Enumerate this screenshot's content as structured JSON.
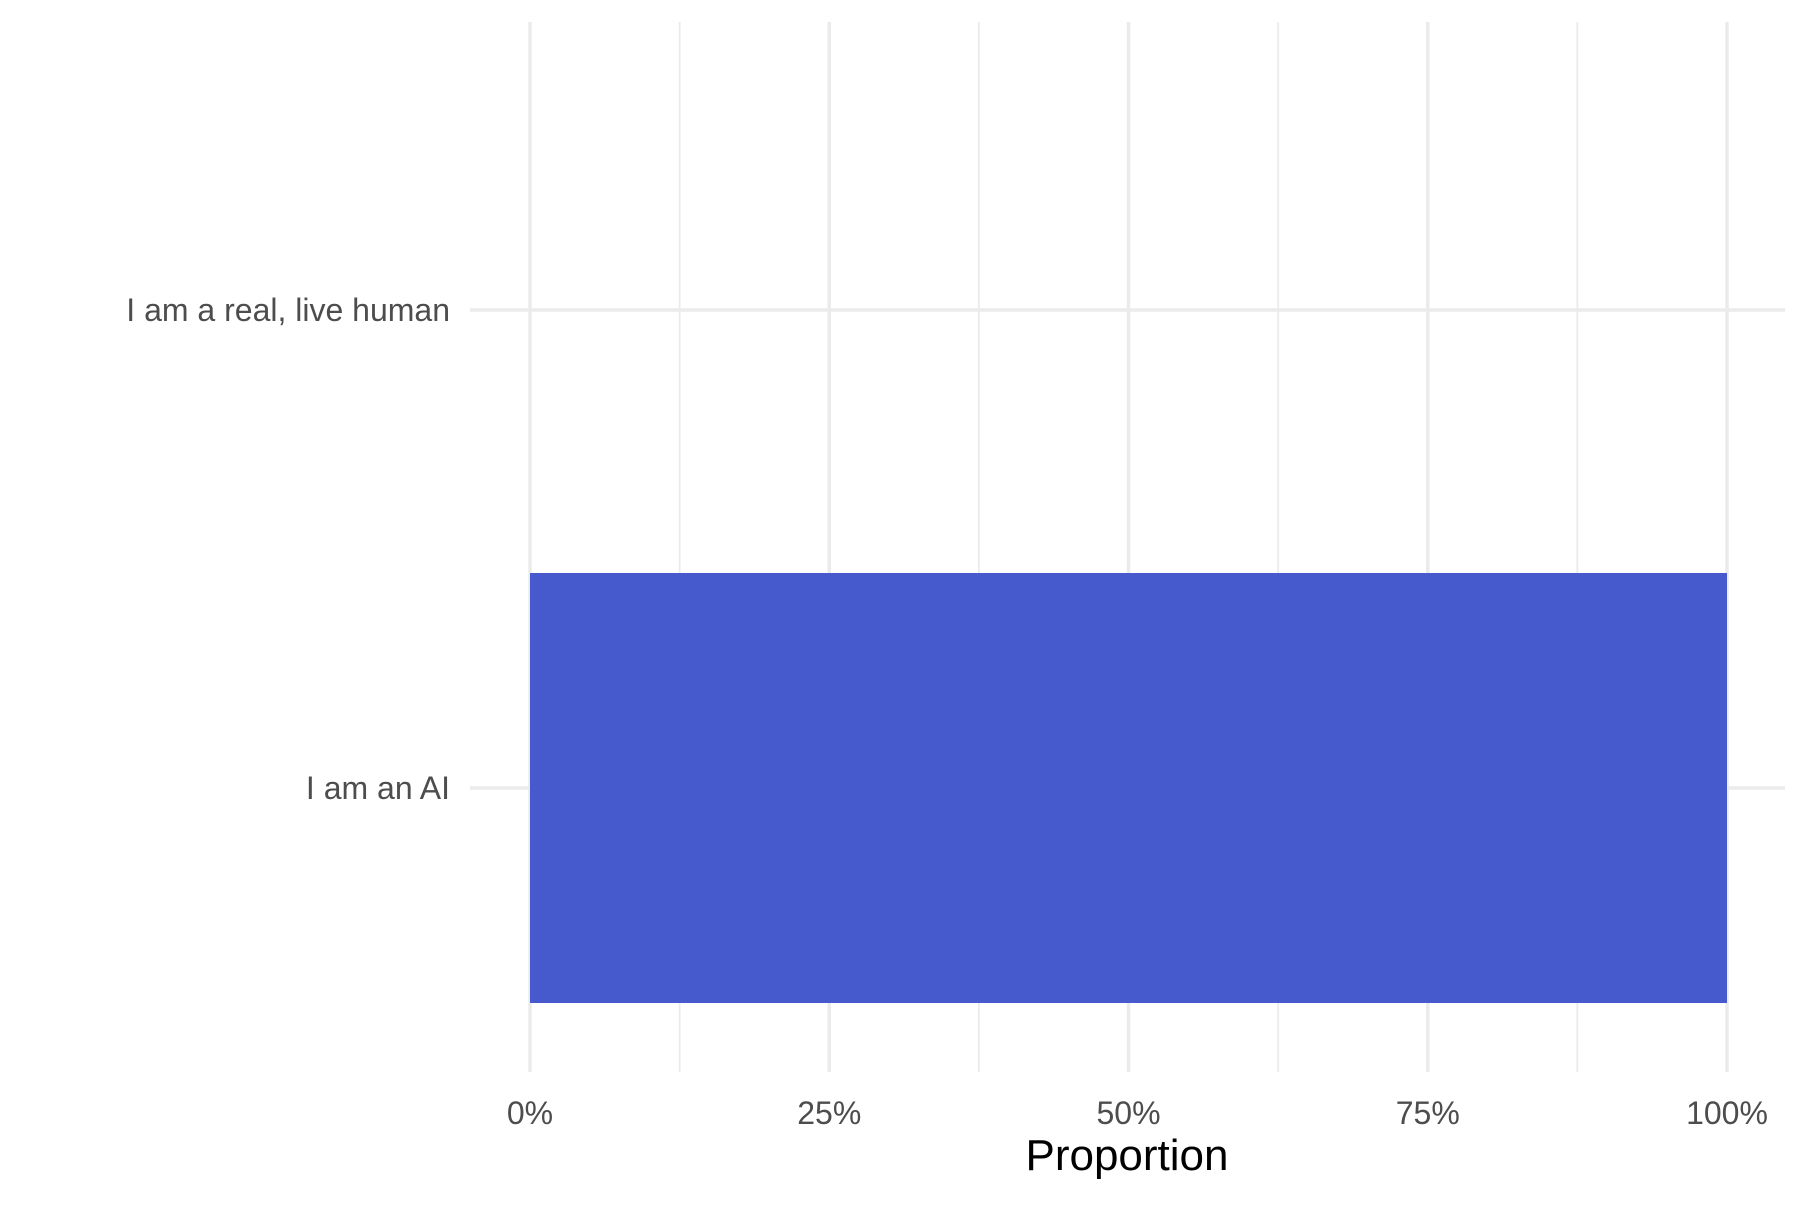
{
  "chart_data": {
    "type": "bar",
    "orientation": "horizontal",
    "categories": [
      "I am a real, live human",
      "I am an AI"
    ],
    "values": [
      0,
      1
    ],
    "xlabel": "Proportion",
    "ylabel": "",
    "title": "",
    "xlim": [
      0,
      1
    ],
    "x_ticks": [
      0,
      0.25,
      0.5,
      0.75,
      1
    ],
    "x_tick_labels": [
      "0%",
      "25%",
      "50%",
      "75%",
      "100%"
    ],
    "grid": true,
    "legend": "none",
    "bar_color": "#4659CD"
  }
}
